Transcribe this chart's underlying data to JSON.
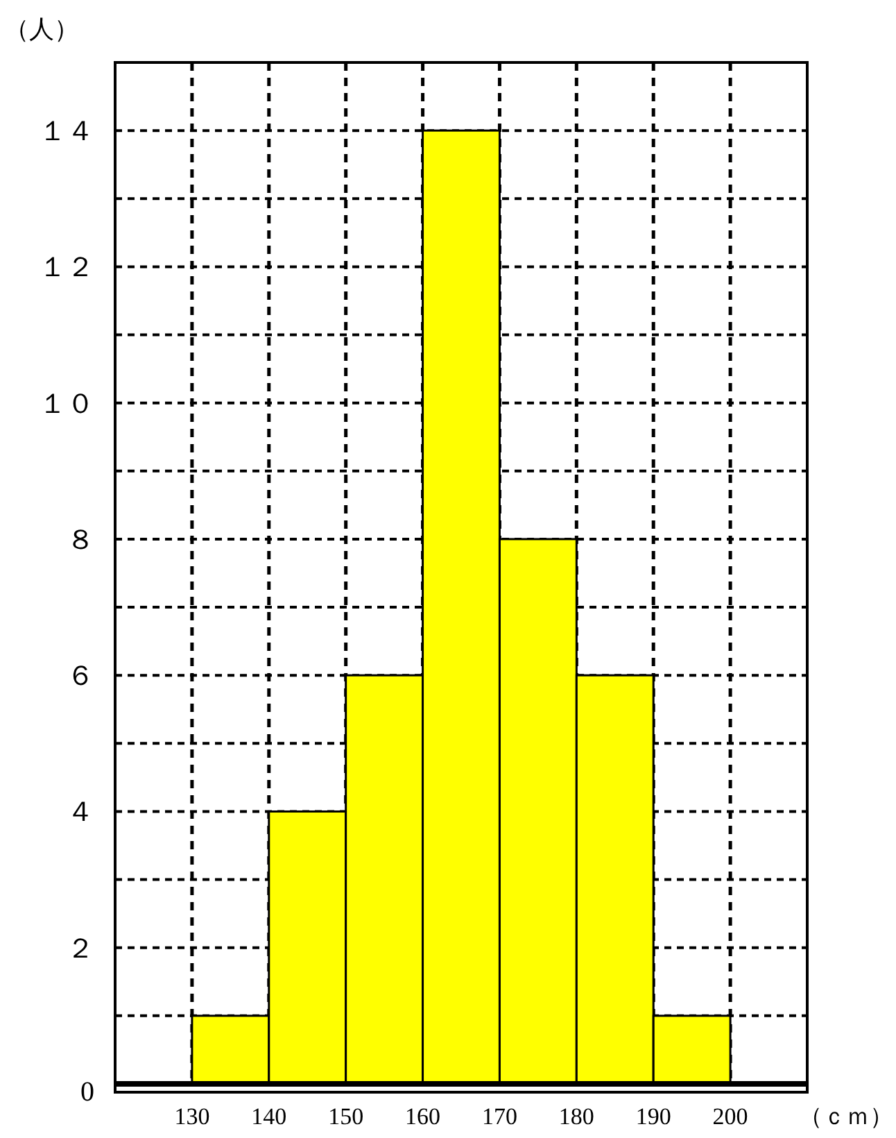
{
  "chart_data": {
    "type": "histogram",
    "ylabel": "（人）",
    "xlabel": "（ｃｍ）",
    "bins": [
      130,
      140,
      150,
      160,
      170,
      180,
      190,
      200
    ],
    "values": [
      1,
      4,
      6,
      14,
      8,
      6,
      1
    ],
    "color": "#ffff00",
    "xlim": [
      120,
      210
    ],
    "ylim": [
      0,
      15
    ],
    "xticks": [
      130,
      140,
      150,
      160,
      170,
      180,
      190,
      200
    ],
    "yticks": [
      {
        "value": 0,
        "label": "0"
      },
      {
        "value": 1,
        "label": null
      },
      {
        "value": 2,
        "label": "２"
      },
      {
        "value": 3,
        "label": null
      },
      {
        "value": 4,
        "label": "４"
      },
      {
        "value": 5,
        "label": null
      },
      {
        "value": 6,
        "label": "６"
      },
      {
        "value": 7,
        "label": null
      },
      {
        "value": 8,
        "label": "８"
      },
      {
        "value": 9,
        "label": null
      },
      {
        "value": 10,
        "label": "１０"
      },
      {
        "value": 11,
        "label": null
      },
      {
        "value": 12,
        "label": "１２"
      },
      {
        "value": 13,
        "label": null
      },
      {
        "value": 14,
        "label": "１４"
      }
    ],
    "grid": true
  }
}
